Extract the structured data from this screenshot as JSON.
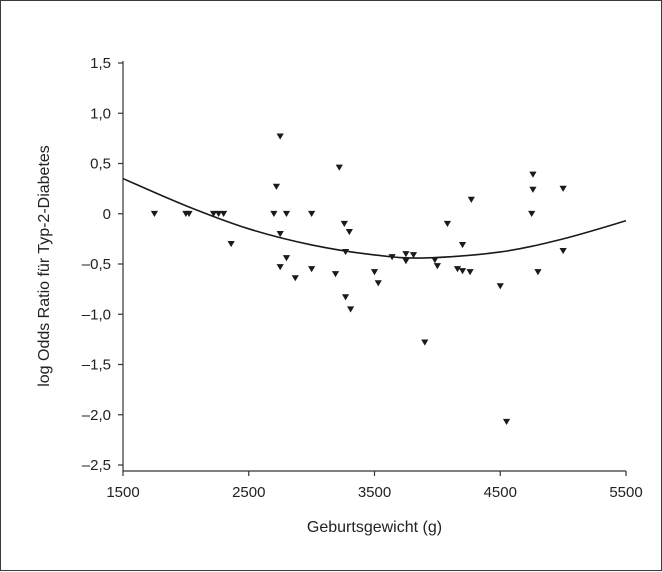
{
  "chart_data": {
    "type": "scatter",
    "title": "",
    "xlabel": "Geburtsgewicht (g)",
    "ylabel": "log Odds Ratio für Typ-2-Diabetes",
    "xlim": [
      1500,
      5500
    ],
    "ylim": [
      -2.6,
      1.5
    ],
    "x_ticks": [
      1500,
      2500,
      3500,
      4500,
      5500
    ],
    "x_tick_labels": [
      "1500",
      "2500",
      "3500",
      "4500",
      "5500"
    ],
    "y_ticks": [
      1.5,
      1.0,
      0.5,
      0,
      -0.5,
      -1.0,
      -1.5,
      -2.0,
      -2.5
    ],
    "y_tick_labels": [
      "1,5",
      "1,0",
      "0,5",
      "0",
      "–0,5",
      "–1,0",
      "–1,5",
      "–2,0",
      "–2,5"
    ],
    "grid": false,
    "legend": "none",
    "marker": "triangle-down",
    "colors": {
      "marker": "#1a1a1a",
      "curve": "#1a1a1a",
      "axis": "#333333",
      "frame": "#3a3a3a"
    },
    "series": [
      {
        "values": [
          [
            1750,
            0.0
          ],
          [
            2000,
            0.0
          ],
          [
            2025,
            0.0
          ],
          [
            2220,
            0.0
          ],
          [
            2260,
            0.0
          ],
          [
            2300,
            0.0
          ],
          [
            2360,
            -0.3
          ],
          [
            2700,
            0.0
          ],
          [
            2720,
            0.27
          ],
          [
            2750,
            0.77
          ],
          [
            2750,
            -0.2
          ],
          [
            2750,
            -0.53
          ],
          [
            2800,
            0.0
          ],
          [
            2800,
            -0.44
          ],
          [
            2870,
            -0.64
          ],
          [
            3000,
            0.0
          ],
          [
            3000,
            -0.55
          ],
          [
            3190,
            -0.6
          ],
          [
            3220,
            0.46
          ],
          [
            3260,
            -0.1
          ],
          [
            3270,
            -0.38
          ],
          [
            3270,
            -0.83
          ],
          [
            3300,
            -0.18
          ],
          [
            3310,
            -0.95
          ],
          [
            3500,
            -0.58
          ],
          [
            3530,
            -0.69
          ],
          [
            3640,
            -0.43
          ],
          [
            3750,
            -0.4
          ],
          [
            3750,
            -0.47
          ],
          [
            3810,
            -0.41
          ],
          [
            3900,
            -1.28
          ],
          [
            3980,
            -0.46
          ],
          [
            4000,
            -0.52
          ],
          [
            4080,
            -0.1
          ],
          [
            4160,
            -0.55
          ],
          [
            4200,
            -0.31
          ],
          [
            4200,
            -0.57
          ],
          [
            4260,
            -0.58
          ],
          [
            4270,
            0.14
          ],
          [
            4500,
            -0.72
          ],
          [
            4550,
            -2.07
          ],
          [
            4750,
            0.0
          ],
          [
            4760,
            0.24
          ],
          [
            4760,
            0.39
          ],
          [
            4800,
            -0.58
          ],
          [
            5000,
            0.25
          ],
          [
            5000,
            -0.37
          ]
        ]
      }
    ],
    "trend_curve": {
      "type": "quadratic fit",
      "points": [
        [
          1500,
          0.35
        ],
        [
          2000,
          0.08
        ],
        [
          2500,
          -0.15
        ],
        [
          3000,
          -0.31
        ],
        [
          3500,
          -0.41
        ],
        [
          3900,
          -0.44
        ],
        [
          4500,
          -0.38
        ],
        [
          5000,
          -0.25
        ],
        [
          5500,
          -0.07
        ]
      ]
    }
  }
}
